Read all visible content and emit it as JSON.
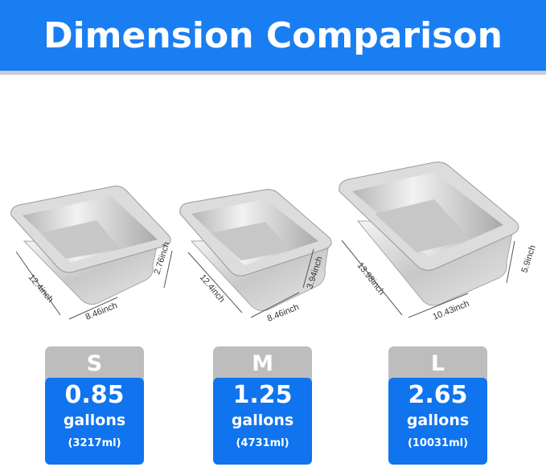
{
  "header": {
    "title": "Dimension Comparison"
  },
  "pans": [
    {
      "size": "S",
      "length": "12.4inch",
      "width": "8.46inch",
      "height": "2.76inch",
      "gallons": "0.85",
      "unit": "gallons",
      "ml": "(3217ml)"
    },
    {
      "size": "M",
      "length": "12.4inch",
      "width": "8.46inch",
      "height": "3.94inch",
      "gallons": "1.25",
      "unit": "gallons",
      "ml": "(4731ml)"
    },
    {
      "size": "L",
      "length": "13.98inch",
      "width": "10.43inch",
      "height": "5.9inch",
      "gallons": "2.65",
      "unit": "gallons",
      "ml": "(10031ml)"
    }
  ],
  "colors": {
    "header": "#1a7ef3",
    "card_blue": "#0f74ee",
    "card_gray": "#bdbdbd"
  }
}
